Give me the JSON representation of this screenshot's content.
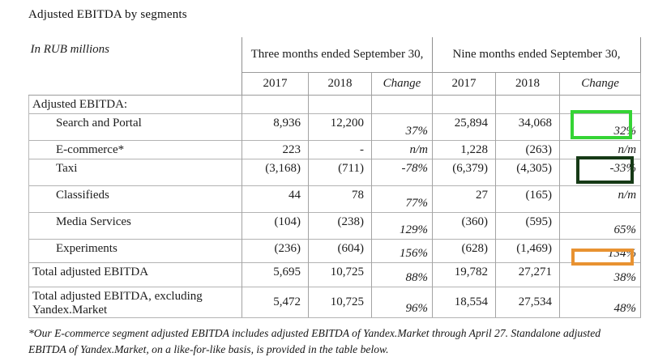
{
  "title": "Adjusted EBITDA by segments",
  "table": {
    "corner_label": "In RUB millions",
    "sections": [
      {
        "label": "Three months ended September 30,"
      },
      {
        "label": "Nine months ended September 30,"
      }
    ],
    "year_headers": [
      "2017",
      "2018",
      "Change",
      "2017",
      "2018",
      "Change"
    ],
    "group_label": "Adjusted EBITDA:",
    "rows": [
      {
        "label": "Search and Portal",
        "indent": true,
        "values": [
          "8,936",
          "12,200",
          "37%",
          "25,894",
          "34,068",
          "32%"
        ],
        "change3_pos": "bottom",
        "change6_pos": "bottom",
        "highlight": "green"
      },
      {
        "label": "E-commerce*",
        "indent": true,
        "values": [
          "223",
          "-",
          "n/m",
          "1,228",
          "(263)",
          "n/m"
        ],
        "change3_pos": "top",
        "change6_pos": "top"
      },
      {
        "label": "Taxi",
        "indent": true,
        "values": [
          "(3,168)",
          "(711)",
          "-78%",
          "(6,379)",
          "(4,305)",
          "-33%"
        ],
        "change3_pos": "top",
        "change6_pos": "top",
        "highlight": "darkgreen"
      },
      {
        "label": "Classifieds",
        "indent": true,
        "values": [
          "44",
          "78",
          "77%",
          "27",
          "(165)",
          "n/m"
        ],
        "change3_pos": "bottom",
        "change6_pos": "top"
      },
      {
        "label": "Media Services",
        "indent": true,
        "values": [
          "(104)",
          "(238)",
          "129%",
          "(360)",
          "(595)",
          "65%"
        ],
        "change3_pos": "bottom",
        "change6_pos": "bottom"
      },
      {
        "label": "Experiments",
        "indent": true,
        "values": [
          "(236)",
          "(604)",
          "156%",
          "(628)",
          "(1,469)",
          "134%"
        ],
        "change3_pos": "bottom",
        "change6_pos": "bottom",
        "highlight": "orange"
      },
      {
        "label": "Total adjusted EBITDA",
        "indent": false,
        "values": [
          "5,695",
          "10,725",
          "88%",
          "19,782",
          "27,271",
          "38%"
        ],
        "change3_pos": "bottom",
        "change6_pos": "bottom"
      },
      {
        "label": "Total adjusted EBITDA, excluding Yandex.Market",
        "indent": false,
        "values": [
          "5,472",
          "10,725",
          "96%",
          "18,554",
          "27,534",
          "48%"
        ],
        "change3_pos": "bottom",
        "change6_pos": "bottom"
      }
    ],
    "highlight_colors": {
      "green": "#35d435",
      "darkgreen": "#163a16",
      "orange": "#e89231"
    }
  },
  "footnote": "*Our E-commerce segment adjusted EBITDA includes adjusted EBITDA of Yandex.Market through April 27. Standalone adjusted EBITDA of Yandex.Market, on a like-for-like basis, is provided in the table below."
}
